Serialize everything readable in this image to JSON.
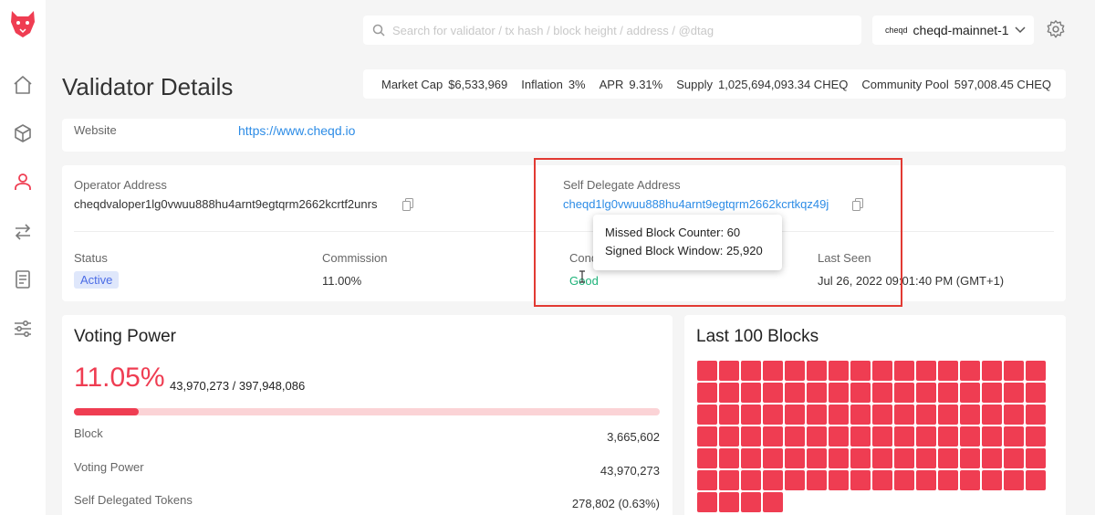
{
  "search": {
    "placeholder": "Search for validator / tx hash / block height / address / @dtag"
  },
  "network": {
    "logo_text": "cheqd",
    "name": "cheqd-mainnet-1"
  },
  "page": {
    "title": "Validator Details"
  },
  "stats": [
    {
      "label": "Market Cap",
      "value": "$6,533,969"
    },
    {
      "label": "Inflation",
      "value": "3%"
    },
    {
      "label": "APR",
      "value": "9.31%"
    },
    {
      "label": "Supply",
      "value": "1,025,694,093.34 CHEQ"
    },
    {
      "label": "Community Pool",
      "value": "597,008.45 CHEQ"
    }
  ],
  "website": {
    "label": "Website",
    "value": "https://www.cheqd.io"
  },
  "operator": {
    "label": "Operator Address",
    "value": "cheqdvaloper1lg0vwuu888hu4arnt9egtqrm2662kcrtf2unrs"
  },
  "self_delegate": {
    "label": "Self Delegate Address",
    "value": "cheqd1lg0vwuu888hu4arnt9egtqrm2662kcrtkqz49j"
  },
  "status": {
    "label": "Status",
    "value": "Active"
  },
  "commission": {
    "label": "Commission",
    "value": "11.00%"
  },
  "condition": {
    "label": "Condition",
    "value": "Good"
  },
  "last_seen": {
    "label": "Last Seen",
    "value": "Jul 26, 2022 09:01:40 PM (GMT+1)"
  },
  "tooltip": {
    "missed": "Missed Block Counter: 60",
    "window": "Signed Block Window: 25,920"
  },
  "voting_power": {
    "title": "Voting Power",
    "percent": "11.05%",
    "ratio": "43,970,273 / 397,948,086",
    "fill_fraction": 0.1105,
    "rows": [
      {
        "label": "Block",
        "value": "3,665,602"
      },
      {
        "label": "Voting Power",
        "value": "43,970,273"
      },
      {
        "label": "Self Delegated Tokens",
        "value": "278,802 (0.63%)"
      }
    ]
  },
  "blocks": {
    "title": "Last 100 Blocks",
    "visible_count": 100,
    "color": "#ef3d52"
  },
  "colors": {
    "accent": "#ef3d52",
    "link": "#2d8ce6",
    "good": "#1eb37a",
    "highlight": "#e23a33"
  }
}
